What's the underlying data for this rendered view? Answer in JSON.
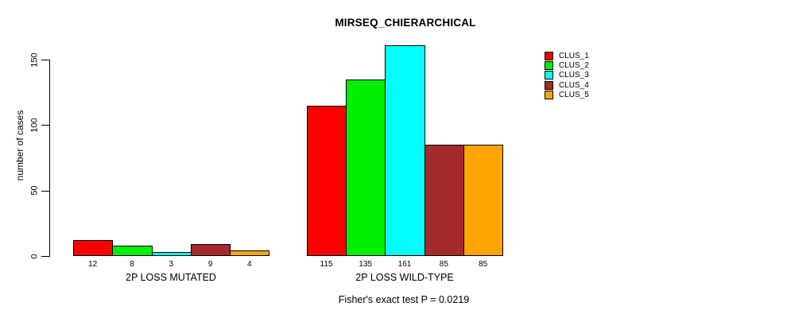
{
  "chart_data": {
    "type": "bar",
    "title": "MIRSEQ_CHIERARCHICAL",
    "xlabel": "",
    "ylabel": "number of cases",
    "ylim": [
      0,
      150
    ],
    "yticks": [
      0,
      50,
      100,
      150
    ],
    "grid": false,
    "legend_position": "top-right",
    "bar_value_labels": true,
    "categories": [
      "2P LOSS MUTATED",
      "2P LOSS WILD-TYPE"
    ],
    "series": [
      {
        "name": "CLUS_1",
        "color": "#ff0000",
        "values": [
          12,
          115
        ]
      },
      {
        "name": "CLUS_2",
        "color": "#00ee00",
        "values": [
          8,
          135
        ]
      },
      {
        "name": "CLUS_3",
        "color": "#00ffff",
        "values": [
          3,
          161
        ]
      },
      {
        "name": "CLUS_4",
        "color": "#a52a2a",
        "values": [
          9,
          85
        ]
      },
      {
        "name": "CLUS_5",
        "color": "#ffa500",
        "values": [
          4,
          85
        ]
      }
    ],
    "annotation": "Fisher's exact test P = 0.0219"
  }
}
